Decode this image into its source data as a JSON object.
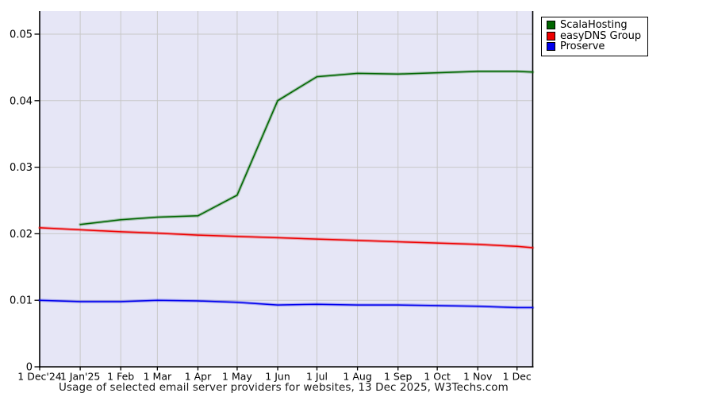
{
  "caption": "Usage of selected email server providers for websites, 13 Dec 2025, W3Techs.com",
  "legend": {
    "items": [
      {
        "label": "ScalaHosting",
        "color": "#006600"
      },
      {
        "label": "easyDNS Group",
        "color": "#ee0000"
      },
      {
        "label": "Proserve",
        "color": "#0000ee"
      }
    ]
  },
  "chart_data": {
    "type": "line",
    "title": "Usage of selected email server providers for websites",
    "date_label": "13 Dec 2025",
    "source": "W3Techs.com",
    "grid": true,
    "legend_position": "top-right-outside",
    "colors": {
      "plot_background": "#e6e6f6",
      "gridline": "#c8c8c8",
      "axis": "#000000"
    },
    "x_axis": {
      "months": [
        {
          "label": "1 Dec'24",
          "day": 0
        },
        {
          "label": "1 Jan'25",
          "day": 31
        },
        {
          "label": "1 Feb",
          "day": 62
        },
        {
          "label": "1 Mar",
          "day": 90
        },
        {
          "label": "1 Apr",
          "day": 121
        },
        {
          "label": "1 May",
          "day": 151
        },
        {
          "label": "1 Jun",
          "day": 182
        },
        {
          "label": "1 Jul",
          "day": 212
        },
        {
          "label": "1 Aug",
          "day": 243
        },
        {
          "label": "1 Sep",
          "day": 274
        },
        {
          "label": "1 Oct",
          "day": 304
        },
        {
          "label": "1 Nov",
          "day": 335
        },
        {
          "label": "1 Dec",
          "day": 365
        }
      ],
      "end_day": 377
    },
    "y_axis": {
      "ticks": [
        {
          "label": "0",
          "value": 0
        },
        {
          "label": "0.01",
          "value": 0.01
        },
        {
          "label": "0.02",
          "value": 0.02
        },
        {
          "label": "0.03",
          "value": 0.03
        },
        {
          "label": "0.04",
          "value": 0.04
        },
        {
          "label": "0.05",
          "value": 0.05
        }
      ],
      "min": 0,
      "max": 0.0535
    },
    "series": [
      {
        "name": "ScalaHosting",
        "color": "#006600",
        "points": [
          [
            31,
            0.0214
          ],
          [
            62,
            0.0221
          ],
          [
            90,
            0.0225
          ],
          [
            121,
            0.0227
          ],
          [
            151,
            0.0258
          ],
          [
            182,
            0.04
          ],
          [
            212,
            0.0436
          ],
          [
            243,
            0.0441
          ],
          [
            274,
            0.044
          ],
          [
            304,
            0.0442
          ],
          [
            335,
            0.0444
          ],
          [
            365,
            0.0444
          ],
          [
            377,
            0.0443
          ]
        ]
      },
      {
        "name": "easyDNS Group",
        "color": "#ee0000",
        "points": [
          [
            0,
            0.0209
          ],
          [
            31,
            0.0206
          ],
          [
            62,
            0.0203
          ],
          [
            90,
            0.0201
          ],
          [
            121,
            0.0198
          ],
          [
            151,
            0.0196
          ],
          [
            182,
            0.0194
          ],
          [
            212,
            0.0192
          ],
          [
            243,
            0.019
          ],
          [
            274,
            0.0188
          ],
          [
            304,
            0.0186
          ],
          [
            335,
            0.0184
          ],
          [
            365,
            0.0181
          ],
          [
            377,
            0.0179
          ]
        ]
      },
      {
        "name": "Proserve",
        "color": "#0000ee",
        "points": [
          [
            0,
            0.01
          ],
          [
            31,
            0.0098
          ],
          [
            62,
            0.0098
          ],
          [
            90,
            0.01
          ],
          [
            121,
            0.0099
          ],
          [
            151,
            0.0097
          ],
          [
            182,
            0.0093
          ],
          [
            212,
            0.0094
          ],
          [
            243,
            0.0093
          ],
          [
            274,
            0.0093
          ],
          [
            304,
            0.0092
          ],
          [
            335,
            0.0091
          ],
          [
            365,
            0.0089
          ],
          [
            377,
            0.0089
          ]
        ]
      }
    ]
  }
}
